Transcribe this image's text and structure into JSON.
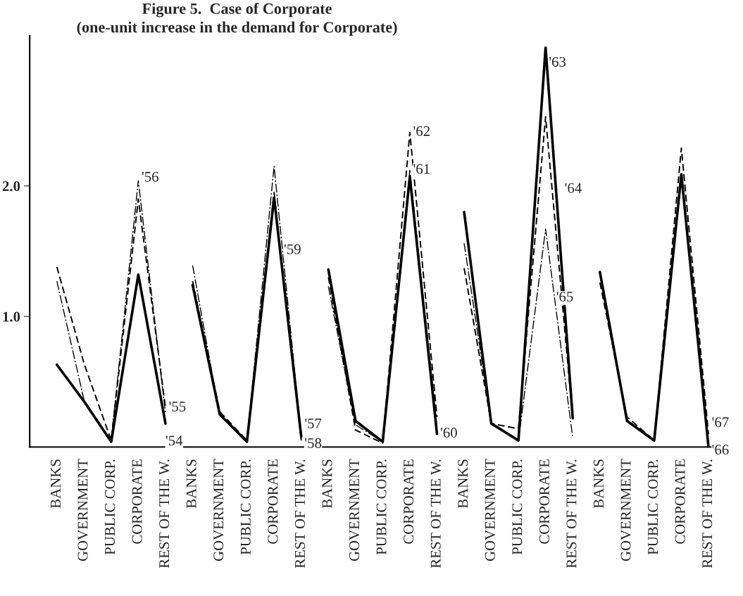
{
  "chart_data": {
    "type": "line",
    "title": "Figure 5.  Case of Corporate",
    "subtitle": "(one-unit increase in the demand for Corporate)",
    "categories": [
      "BANKS",
      "GOVERNMENT",
      "PUBLIC CORP.",
      "CORPORATE",
      "REST OF THE W.",
      "BANKS",
      "GOVERNMENT",
      "PUBLIC CORP.",
      "CORPORATE",
      "REST OF THE W.",
      "BANKS",
      "GOVERNMENT",
      "PUBLIC CORP.",
      "CORPORATE",
      "REST OF THE W.",
      "BANKS",
      "GOVERNMENT",
      "PUBLIC CORP.",
      "CORPORATE",
      "REST OF THE W.",
      "BANKS",
      "GOVERNMENT",
      "PUBLIC CORP.",
      "CORPORATE",
      "REST OF THE W."
    ],
    "ylim": [
      0,
      3.15
    ],
    "yticks": [
      {
        "value": 1,
        "label": "1.0"
      },
      {
        "value": 2,
        "label": "2.0"
      }
    ],
    "grid": false,
    "legend": false,
    "marker": "none",
    "series": [
      {
        "name": "'54",
        "color": "#000000",
        "line_style": "solid",
        "values": [
          0.63,
          0.35,
          0.04,
          1.32,
          0.18,
          null,
          null,
          null,
          null,
          null,
          null,
          null,
          null,
          null,
          null,
          null,
          null,
          null,
          null,
          null,
          null,
          null,
          null,
          null,
          null
        ]
      },
      {
        "name": "'55",
        "color": "#000000",
        "line_style": "dashed",
        "values": [
          1.38,
          0.64,
          0.05,
          1.9,
          0.3,
          null,
          null,
          null,
          null,
          null,
          null,
          null,
          null,
          null,
          null,
          null,
          null,
          null,
          null,
          null,
          null,
          null,
          null,
          null,
          null
        ]
      },
      {
        "name": "'56",
        "color": "#000000",
        "line_style": "dotted",
        "values": [
          1.27,
          0.36,
          0.05,
          2.04,
          0.26,
          null,
          null,
          null,
          null,
          null,
          null,
          null,
          null,
          null,
          null,
          null,
          null,
          null,
          null,
          null,
          null,
          null,
          null,
          null,
          null
        ]
      },
      {
        "name": "'57",
        "color": "#000000",
        "line_style": "solid",
        "values": [
          null,
          null,
          null,
          null,
          null,
          1.24,
          0.25,
          0.04,
          1.91,
          0.08,
          null,
          null,
          null,
          null,
          null,
          null,
          null,
          null,
          null,
          null,
          null,
          null,
          null,
          null,
          null
        ]
      },
      {
        "name": "'58",
        "color": "#000000",
        "line_style": "dashed",
        "values": [
          null,
          null,
          null,
          null,
          null,
          1.27,
          0.27,
          0.05,
          1.95,
          0.05,
          null,
          null,
          null,
          null,
          null,
          null,
          null,
          null,
          null,
          null,
          null,
          null,
          null,
          null,
          null
        ]
      },
      {
        "name": "'59",
        "color": "#000000",
        "line_style": "dotted",
        "values": [
          null,
          null,
          null,
          null,
          null,
          1.39,
          0.24,
          0.05,
          2.15,
          0.08,
          null,
          null,
          null,
          null,
          null,
          null,
          null,
          null,
          null,
          null,
          null,
          null,
          null,
          null,
          null
        ]
      },
      {
        "name": "'60",
        "color": "#000000",
        "line_style": "solid",
        "values": [
          null,
          null,
          null,
          null,
          null,
          null,
          null,
          null,
          null,
          null,
          1.36,
          0.2,
          0.04,
          2.07,
          0.1,
          null,
          null,
          null,
          null,
          null,
          null,
          null,
          null,
          null,
          null
        ]
      },
      {
        "name": "'61",
        "color": "#000000",
        "line_style": "dotted",
        "values": [
          null,
          null,
          null,
          null,
          null,
          null,
          null,
          null,
          null,
          null,
          1.23,
          0.17,
          0.04,
          2.12,
          0.15,
          null,
          null,
          null,
          null,
          null,
          null,
          null,
          null,
          null,
          null
        ]
      },
      {
        "name": "'62",
        "color": "#000000",
        "line_style": "dashed",
        "values": [
          null,
          null,
          null,
          null,
          null,
          null,
          null,
          null,
          null,
          null,
          1.3,
          0.13,
          0.03,
          2.41,
          0.23,
          null,
          null,
          null,
          null,
          null,
          null,
          null,
          null,
          null,
          null
        ]
      },
      {
        "name": "'63",
        "color": "#000000",
        "line_style": "solid",
        "values": [
          null,
          null,
          null,
          null,
          null,
          null,
          null,
          null,
          null,
          null,
          null,
          null,
          null,
          null,
          null,
          1.8,
          0.18,
          0.05,
          3.06,
          0.22,
          null,
          null,
          null,
          null,
          null
        ]
      },
      {
        "name": "'64",
        "color": "#000000",
        "line_style": "dashed",
        "values": [
          null,
          null,
          null,
          null,
          null,
          null,
          null,
          null,
          null,
          null,
          null,
          null,
          null,
          null,
          null,
          1.37,
          0.18,
          0.14,
          2.53,
          0.22,
          null,
          null,
          null,
          null,
          null
        ]
      },
      {
        "name": "'65",
        "color": "#000000",
        "line_style": "dotted",
        "values": [
          null,
          null,
          null,
          null,
          null,
          null,
          null,
          null,
          null,
          null,
          null,
          null,
          null,
          null,
          null,
          1.56,
          0.18,
          0.05,
          1.67,
          0.07,
          null,
          null,
          null,
          null,
          null
        ]
      },
      {
        "name": "'66",
        "color": "#000000",
        "line_style": "solid",
        "values": [
          null,
          null,
          null,
          null,
          null,
          null,
          null,
          null,
          null,
          null,
          null,
          null,
          null,
          null,
          null,
          null,
          null,
          null,
          null,
          null,
          1.34,
          0.2,
          0.05,
          2.09,
          0.0
        ]
      },
      {
        "name": "'67",
        "color": "#000000",
        "line_style": "dashed",
        "values": [
          null,
          null,
          null,
          null,
          null,
          null,
          null,
          null,
          null,
          null,
          null,
          null,
          null,
          null,
          null,
          null,
          null,
          null,
          null,
          null,
          1.26,
          0.23,
          0.05,
          2.29,
          0.1
        ]
      }
    ]
  }
}
